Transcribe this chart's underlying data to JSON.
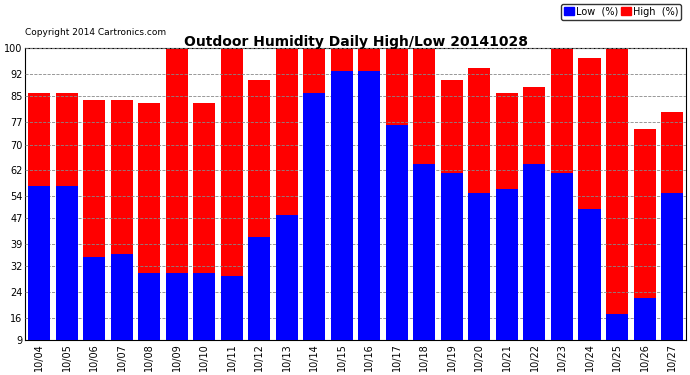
{
  "title": "Outdoor Humidity Daily High/Low 20141028",
  "copyright": "Copyright 2014 Cartronics.com",
  "legend_low": "Low  (%)",
  "legend_high": "High  (%)",
  "low_color": "#0000ff",
  "high_color": "#ff0000",
  "bg_color": "#ffffff",
  "plot_bg_color": "#ffffff",
  "grid_color": "#888888",
  "yticks": [
    9,
    16,
    24,
    32,
    39,
    47,
    54,
    62,
    70,
    77,
    85,
    92,
    100
  ],
  "ylim": [
    9,
    100
  ],
  "dates": [
    "10/04",
    "10/05",
    "10/06",
    "10/07",
    "10/08",
    "10/09",
    "10/10",
    "10/11",
    "10/12",
    "10/13",
    "10/14",
    "10/15",
    "10/16",
    "10/17",
    "10/18",
    "10/19",
    "10/20",
    "10/21",
    "10/22",
    "10/23",
    "10/24",
    "10/25",
    "10/26",
    "10/27"
  ],
  "high_values": [
    86,
    86,
    84,
    84,
    83,
    100,
    83,
    100,
    90,
    100,
    100,
    100,
    100,
    100,
    100,
    90,
    94,
    86,
    88,
    100,
    97,
    100,
    75,
    80
  ],
  "low_values": [
    57,
    57,
    35,
    36,
    30,
    30,
    30,
    29,
    41,
    48,
    86,
    93,
    93,
    76,
    64,
    61,
    55,
    56,
    64,
    61,
    50,
    17,
    22,
    55
  ]
}
